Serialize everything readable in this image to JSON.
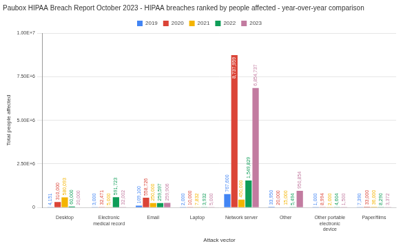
{
  "chart_data": {
    "type": "bar",
    "title": "Paubox HIPAA Breach Report October 2023 - HIPAA breaches ranked by people affected - year-over-year comparison",
    "xlabel": "Attack vector",
    "ylabel": "Total people affected",
    "categories": [
      "Desktop",
      "Electronic medical record",
      "Email",
      "Laptop",
      "Network server",
      "Other",
      "Other portable electronic device",
      "Paper/films"
    ],
    "series": [
      {
        "name": "2019",
        "color": "#4285f4",
        "values": [
          4151,
          3000,
          109100,
          2000,
          767600,
          33950,
          1000,
          7390
        ],
        "value_labels": [
          "4,151",
          "3,000",
          "109,100",
          "2,000",
          "767,600",
          "33,950",
          "1,000",
          "7,390"
        ]
      },
      {
        "name": "2020",
        "color": "#db4437",
        "values": [
          310000,
          32471,
          558726,
          10000,
          8737959,
          20000,
          8994,
          33000
        ],
        "value_labels": [
          "310,000",
          "32,471",
          "558,726",
          "10,000",
          "8,737,959",
          "20,000",
          "8,994",
          "33,000"
        ]
      },
      {
        "name": "2021",
        "color": "#f4b400",
        "values": [
          580093,
          5000,
          250000,
          7832,
          450000,
          15000,
          2000,
          36000
        ],
        "value_labels": [
          "580,093",
          "5,000",
          "250,000",
          "7,832",
          "450,000",
          "15,000",
          "2,000",
          "36,000"
        ]
      },
      {
        "name": "2022",
        "color": "#0f9d58",
        "values": [
          60000,
          591723,
          259597,
          3932,
          1549829,
          5494,
          4604,
          8290
        ],
        "value_labels": [
          "60,000",
          "591,723",
          "259,597",
          "3,932",
          "1,549,829",
          "5,494",
          "4,604",
          "8,290"
        ]
      },
      {
        "name": "2023",
        "color": "#c27ba0",
        "values": [
          20000,
          32002,
          259906,
          5000,
          6854737,
          950854,
          1500,
          3372
        ],
        "value_labels": [
          "20,000",
          "32,002",
          "259,906",
          "5,000",
          "6,854,737",
          "950,854",
          "1,500",
          "3,372"
        ]
      }
    ],
    "ylim": [
      0,
      10000000
    ],
    "yticks": [
      0,
      {
        "value": 2500000,
        "label": "2.50E+6"
      },
      {
        "value": 5000000,
        "label": "5.00E+6"
      },
      {
        "value": 7500000,
        "label": "7.50E+6"
      },
      {
        "value": 10000000,
        "label": "1.00E+7"
      }
    ],
    "grid": true,
    "legend": "top",
    "data_labels": true
  }
}
